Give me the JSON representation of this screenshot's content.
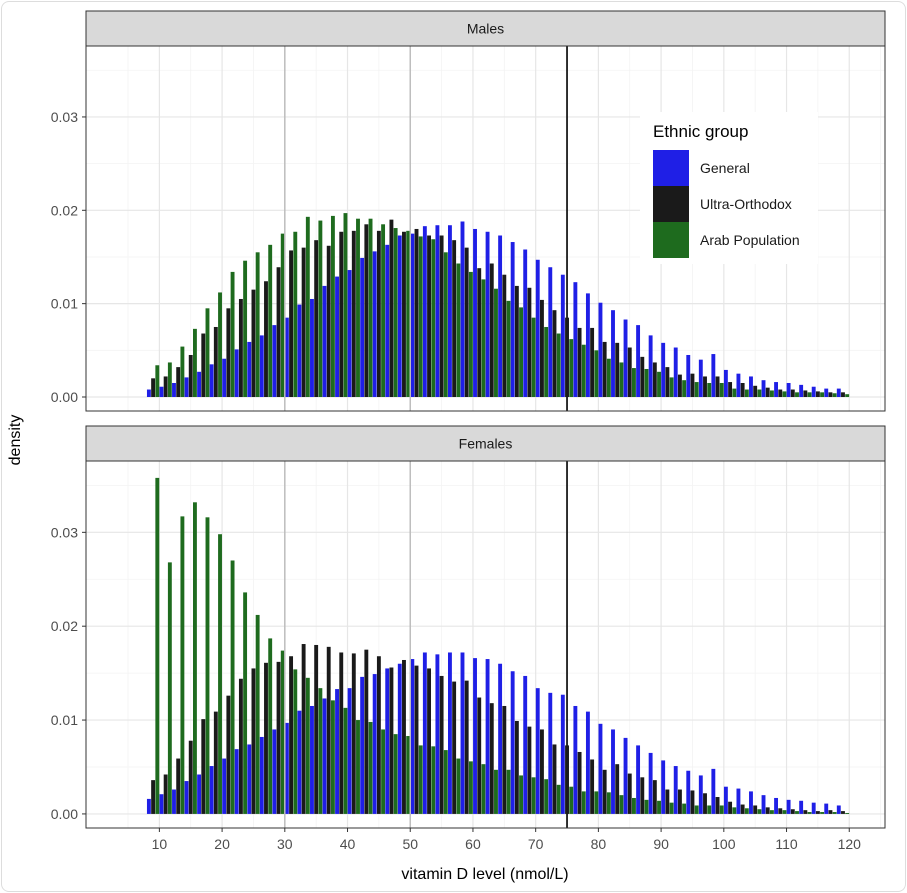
{
  "chart_data": {
    "type": "bar",
    "xlabel": "vitamin D level (nmol/L)",
    "ylabel": "density",
    "xlim": [
      -1.7,
      125.7
    ],
    "ylim": [
      -0.0015,
      0.0376
    ],
    "x_ticks": [
      10,
      20,
      30,
      40,
      50,
      60,
      70,
      80,
      90,
      100,
      110,
      120
    ],
    "x_tick_labels": [
      "10",
      "20",
      "30",
      "40",
      "50",
      "60",
      "70",
      "80",
      "90",
      "100",
      "110",
      "120"
    ],
    "y_ticks": [
      0,
      0.01,
      0.02,
      0.03
    ],
    "y_tick_labels": [
      "0.00",
      "0.01",
      "0.02",
      "0.03"
    ],
    "grid": true,
    "reference_lines": [
      {
        "x": 30,
        "color": "#bdbdbd"
      },
      {
        "x": 50,
        "color": "#bdbdbd"
      },
      {
        "x": 75,
        "color": "#1a1a1a"
      }
    ],
    "legend": {
      "title": "Ethnic group",
      "placement": "top-right inside top panel",
      "entries": [
        {
          "name": "General",
          "color": "#1f1fe6"
        },
        {
          "name": "Ultra-Orthodox",
          "color": "#1a1a1a"
        },
        {
          "name": "Arab Population",
          "color": "#1e6b1e"
        }
      ]
    },
    "x": [
      9,
      11,
      13,
      15,
      17,
      19,
      21,
      23,
      25,
      27,
      29,
      31,
      33,
      35,
      37,
      39,
      41,
      43,
      45,
      47,
      49,
      51,
      53,
      55,
      57,
      59,
      61,
      63,
      65,
      67,
      69,
      71,
      73,
      75,
      77,
      79,
      81,
      83,
      85,
      87,
      89,
      91,
      93,
      95,
      97,
      99,
      101,
      103,
      105,
      107,
      109,
      111,
      113,
      115,
      117,
      119
    ],
    "facets": [
      {
        "name": "Males",
        "series": [
          {
            "name": "General",
            "values": [
              0.0008,
              0.0011,
              0.0015,
              0.0021,
              0.0027,
              0.0035,
              0.0041,
              0.0051,
              0.0059,
              0.0066,
              0.0077,
              0.0085,
              0.0099,
              0.0105,
              0.0119,
              0.0129,
              0.0136,
              0.0149,
              0.0156,
              0.0163,
              0.0173,
              0.0175,
              0.0183,
              0.0184,
              0.0184,
              0.0188,
              0.018,
              0.0177,
              0.0173,
              0.0166,
              0.0158,
              0.0147,
              0.0139,
              0.0131,
              0.0123,
              0.0111,
              0.0101,
              0.0093,
              0.0083,
              0.0077,
              0.0066,
              0.0058,
              0.0053,
              0.0045,
              0.004,
              0.0046,
              0.0029,
              0.0025,
              0.0022,
              0.0018,
              0.0016,
              0.0015,
              0.0013,
              0.0011,
              0.0009,
              0.0009
            ]
          },
          {
            "name": "Ultra-Orthodox",
            "values": [
              0.002,
              0.0022,
              0.0032,
              0.0045,
              0.0068,
              0.0075,
              0.0095,
              0.0105,
              0.0115,
              0.0124,
              0.0139,
              0.0157,
              0.016,
              0.0168,
              0.0162,
              0.0177,
              0.0178,
              0.0185,
              0.0178,
              0.019,
              0.0177,
              0.018,
              0.0173,
              0.0173,
              0.0168,
              0.016,
              0.0138,
              0.0143,
              0.0131,
              0.0119,
              0.0117,
              0.0104,
              0.0093,
              0.0085,
              0.0074,
              0.0074,
              0.0059,
              0.0058,
              0.0053,
              0.0043,
              0.0037,
              0.0032,
              0.0024,
              0.0025,
              0.0022,
              0.0022,
              0.0016,
              0.0015,
              0.0012,
              0.001,
              0.0008,
              0.0008,
              0.0007,
              0.0006,
              0.0005,
              0.0005
            ]
          },
          {
            "name": "Arab Population",
            "values": [
              0.0034,
              0.0037,
              0.0054,
              0.0073,
              0.0095,
              0.0112,
              0.0134,
              0.0146,
              0.0155,
              0.0163,
              0.0175,
              0.0177,
              0.0193,
              0.0189,
              0.0194,
              0.0197,
              0.0191,
              0.0191,
              0.0185,
              0.0181,
              0.0178,
              0.0172,
              0.0169,
              0.0155,
              0.0143,
              0.0134,
              0.0126,
              0.0116,
              0.0103,
              0.0096,
              0.0085,
              0.0075,
              0.0068,
              0.0062,
              0.0056,
              0.005,
              0.0041,
              0.0037,
              0.0031,
              0.003,
              0.0027,
              0.0021,
              0.0018,
              0.0016,
              0.0015,
              0.0015,
              0.0009,
              0.0008,
              0.0008,
              0.0007,
              0.0006,
              0.0005,
              0.0005,
              0.0005,
              0.0004,
              0.0003
            ]
          }
        ]
      },
      {
        "name": "Females",
        "series": [
          {
            "name": "General",
            "values": [
              0.0016,
              0.0021,
              0.0026,
              0.0035,
              0.0042,
              0.0051,
              0.0059,
              0.0069,
              0.0074,
              0.0082,
              0.009,
              0.0097,
              0.011,
              0.0115,
              0.0123,
              0.0133,
              0.0134,
              0.0146,
              0.0149,
              0.0155,
              0.016,
              0.0165,
              0.0172,
              0.017,
              0.0172,
              0.0172,
              0.0166,
              0.0165,
              0.016,
              0.0152,
              0.0147,
              0.0134,
              0.0129,
              0.0127,
              0.0115,
              0.0109,
              0.0096,
              0.009,
              0.0081,
              0.0073,
              0.0065,
              0.0057,
              0.0051,
              0.0046,
              0.0041,
              0.0048,
              0.0029,
              0.0027,
              0.0024,
              0.002,
              0.0017,
              0.0015,
              0.0014,
              0.0012,
              0.0011,
              0.0009
            ]
          },
          {
            "name": "Ultra-Orthodox",
            "values": [
              0.0036,
              0.0042,
              0.0059,
              0.0078,
              0.0101,
              0.0109,
              0.0126,
              0.0144,
              0.0155,
              0.0161,
              0.0162,
              0.0168,
              0.0181,
              0.018,
              0.0178,
              0.0172,
              0.0171,
              0.0175,
              0.0168,
              0.0156,
              0.0164,
              0.0158,
              0.0155,
              0.0147,
              0.0141,
              0.0142,
              0.0124,
              0.0118,
              0.0115,
              0.0099,
              0.0093,
              0.009,
              0.0074,
              0.0073,
              0.0066,
              0.0058,
              0.0047,
              0.0053,
              0.0043,
              0.0039,
              0.0036,
              0.0026,
              0.0026,
              0.0025,
              0.0022,
              0.0018,
              0.0013,
              0.001,
              0.0009,
              0.0007,
              0.0006,
              0.0005,
              0.0004,
              0.0003,
              0.0004,
              0.0003
            ]
          },
          {
            "name": "Arab Population",
            "values": [
              0.0358,
              0.0268,
              0.0317,
              0.0332,
              0.0316,
              0.0298,
              0.027,
              0.0236,
              0.0212,
              0.0187,
              0.0174,
              0.0154,
              0.0145,
              0.0134,
              0.0121,
              0.0113,
              0.01,
              0.0098,
              0.009,
              0.0085,
              0.0083,
              0.0073,
              0.0072,
              0.0068,
              0.0059,
              0.0056,
              0.0053,
              0.0047,
              0.0047,
              0.0041,
              0.0039,
              0.0037,
              0.0031,
              0.0029,
              0.0024,
              0.0024,
              0.0023,
              0.002,
              0.0017,
              0.0015,
              0.0014,
              0.0012,
              0.0011,
              0.0009,
              0.0009,
              0.0009,
              0.0007,
              0.0006,
              0.0005,
              0.0004,
              0.0004,
              0.0003,
              0.0002,
              0.0002,
              0.0002,
              0.0001
            ]
          }
        ]
      }
    ]
  }
}
